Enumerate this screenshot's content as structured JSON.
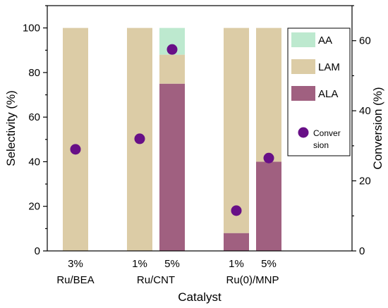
{
  "chart_data": {
    "type": "bar",
    "stacked": true,
    "xlabel": "Catalyst",
    "ylabel": "Selectivity (%)",
    "y2label": "Conversion (%)",
    "ylim": [
      0,
      110
    ],
    "y2lim": [
      0,
      70
    ],
    "yticks": [
      0,
      20,
      40,
      60,
      80,
      100
    ],
    "y2ticks": [
      0,
      20,
      40,
      60
    ],
    "groups": [
      {
        "name": "Ru/BEA",
        "bars": [
          "3%"
        ]
      },
      {
        "name": "Ru/CNT",
        "bars": [
          "1%",
          "5%"
        ]
      },
      {
        "name": "Ru(0)/MNP",
        "bars": [
          "1%",
          "5%"
        ]
      }
    ],
    "bars": [
      {
        "group": "Ru/BEA",
        "label": "3%",
        "ALA": 0,
        "LAM": 100,
        "AA": 0,
        "conversion": 29
      },
      {
        "group": "Ru/CNT",
        "label": "1%",
        "ALA": 0,
        "LAM": 100,
        "AA": 0,
        "conversion": 32
      },
      {
        "group": "Ru/CNT",
        "label": "5%",
        "ALA": 75,
        "LAM": 13,
        "AA": 12,
        "conversion": 57.5
      },
      {
        "group": "Ru(0)/MNP",
        "label": "1%",
        "ALA": 8,
        "LAM": 92,
        "AA": 0,
        "conversion": 11.5
      },
      {
        "group": "Ru(0)/MNP",
        "label": "5%",
        "ALA": 40,
        "LAM": 60,
        "AA": 0,
        "conversion": 26.5
      }
    ],
    "series": [
      {
        "name": "AA",
        "color": "#bde9cf"
      },
      {
        "name": "LAM",
        "color": "#dccca6"
      },
      {
        "name": "ALA",
        "color": "#a06080"
      }
    ],
    "conversion_series": {
      "name_line1": "Conver",
      "name_line2": "sion",
      "color": "#680f87"
    },
    "legend_placement": "top-right",
    "grid": false
  }
}
